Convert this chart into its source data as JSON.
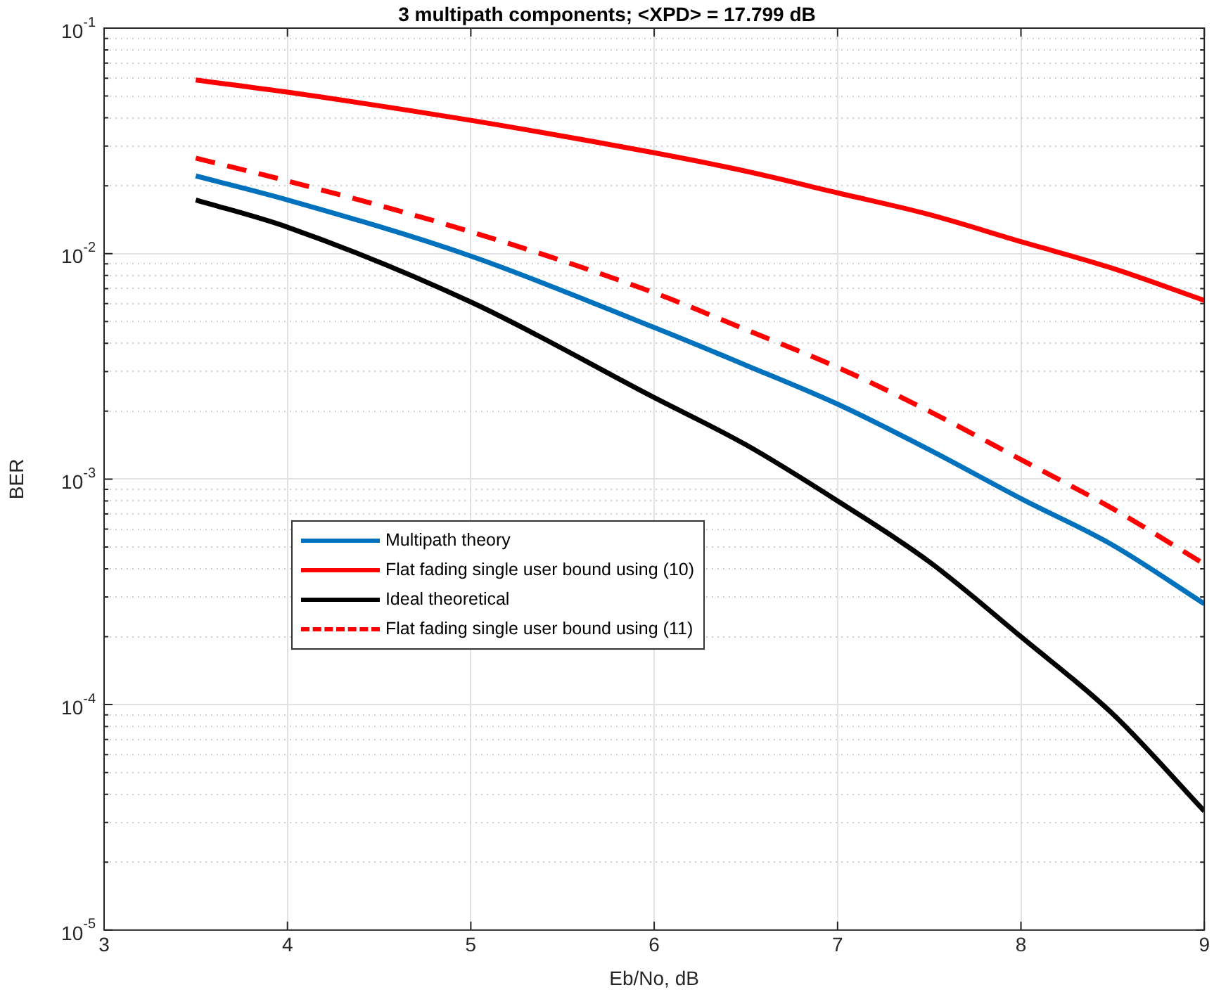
{
  "chart_data": {
    "type": "line",
    "title": "3 multipath components; <XPD> = 17.799 dB",
    "xlabel": "Eb/No, dB",
    "ylabel": "BER",
    "x": [
      3.5,
      4,
      5,
      6,
      6.5,
      7,
      7.5,
      8,
      8.5,
      9
    ],
    "series": [
      {
        "name": "Multipath theory",
        "color": "#0072bd",
        "values": [
          0.0221,
          0.0173,
          0.00975,
          0.0047,
          0.0032,
          0.00215,
          0.00135,
          0.00082,
          0.00051,
          0.00028
        ]
      },
      {
        "name": "Flat fading single user bound using (10)",
        "color": "#ff0000",
        "values": [
          0.0589,
          0.052,
          0.039,
          0.028,
          0.0232,
          0.0186,
          0.0149,
          0.0113,
          0.0086,
          0.0062
        ]
      },
      {
        "name": "Ideal theoretical",
        "color": "#000000",
        "values": [
          0.0173,
          0.0131,
          0.0061,
          0.0023,
          0.00142,
          0.0008,
          0.00043,
          0.0002,
          9.1e-05,
          3.37e-05
        ]
      },
      {
        "name": "Flat fading single user bound using (11)",
        "color": "#ff0000",
        "line_style": "dashed",
        "values": [
          0.0265,
          0.021,
          0.0125,
          0.0067,
          0.0046,
          0.00313,
          0.002,
          0.00122,
          0.00074,
          0.00042
        ]
      }
    ],
    "xlim": [
      3,
      9
    ],
    "xticks": [
      3,
      4,
      5,
      6,
      7,
      8,
      9
    ],
    "ylim": [
      1e-05,
      0.1
    ],
    "log": "y",
    "yticks": [
      {
        "value": 1e-05,
        "label": "10$^{-5}$"
      },
      {
        "value": 2e-05,
        "label": null
      },
      {
        "value": 3e-05,
        "label": null
      },
      {
        "value": 4e-05,
        "label": null
      },
      {
        "value": 5e-05,
        "label": null
      },
      {
        "value": 6e-05,
        "label": null
      },
      {
        "value": 7e-05,
        "label": null
      },
      {
        "value": 8e-05,
        "label": null
      },
      {
        "value": 9e-05,
        "label": null
      },
      {
        "value": 0.0001,
        "label": "10$^{-4}$"
      },
      {
        "value": 0.0002,
        "label": null
      },
      {
        "value": 0.0003,
        "label": null
      },
      {
        "value": 0.0004,
        "label": null
      },
      {
        "value": 0.0005,
        "label": null
      },
      {
        "value": 0.0006,
        "label": null
      },
      {
        "value": 0.0007,
        "label": null
      },
      {
        "value": 0.0008,
        "label": null
      },
      {
        "value": 0.0009,
        "label": null
      },
      {
        "value": 0.001,
        "label": "10$^{-3}$"
      },
      {
        "value": 0.002,
        "label": null
      },
      {
        "value": 0.003,
        "label": null
      },
      {
        "value": 0.004,
        "label": null
      },
      {
        "value": 0.005,
        "label": null
      },
      {
        "value": 0.006,
        "label": null
      },
      {
        "value": 0.007,
        "label": null
      },
      {
        "value": 0.008,
        "label": null
      },
      {
        "value": 0.009,
        "label": null
      },
      {
        "value": 0.01,
        "label": "10$^{-2}$"
      },
      {
        "value": 0.02,
        "label": null
      },
      {
        "value": 0.03,
        "label": null
      },
      {
        "value": 0.04,
        "label": null
      },
      {
        "value": 0.05,
        "label": null
      },
      {
        "value": 0.06,
        "label": null
      },
      {
        "value": 0.07,
        "label": null
      },
      {
        "value": 0.08,
        "label": null
      },
      {
        "value": 0.09,
        "label": null
      },
      {
        "value": 0.1,
        "label": "10$^{-1}$"
      }
    ],
    "grid": true,
    "legend": "center left",
    "marker": "none",
    "line_style": "solid"
  }
}
